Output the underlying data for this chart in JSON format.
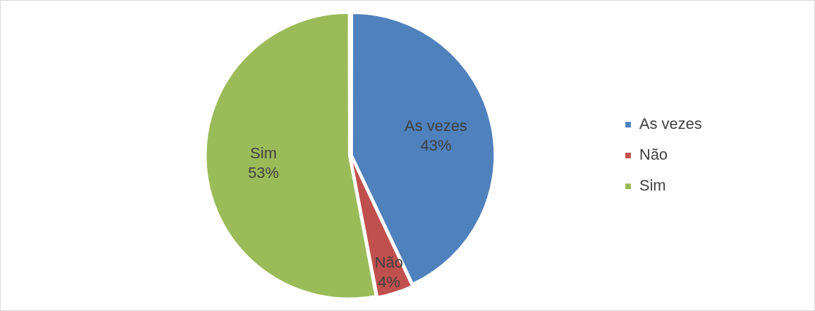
{
  "chart_data": {
    "type": "pie",
    "categories": [
      "As vezes",
      "Não",
      "Sim"
    ],
    "values": [
      43,
      4,
      53
    ],
    "colors": [
      "#4f81bd",
      "#c0504d",
      "#9bbb59"
    ],
    "value_labels": [
      "43%",
      "4%",
      "53%"
    ],
    "legend": "right"
  }
}
